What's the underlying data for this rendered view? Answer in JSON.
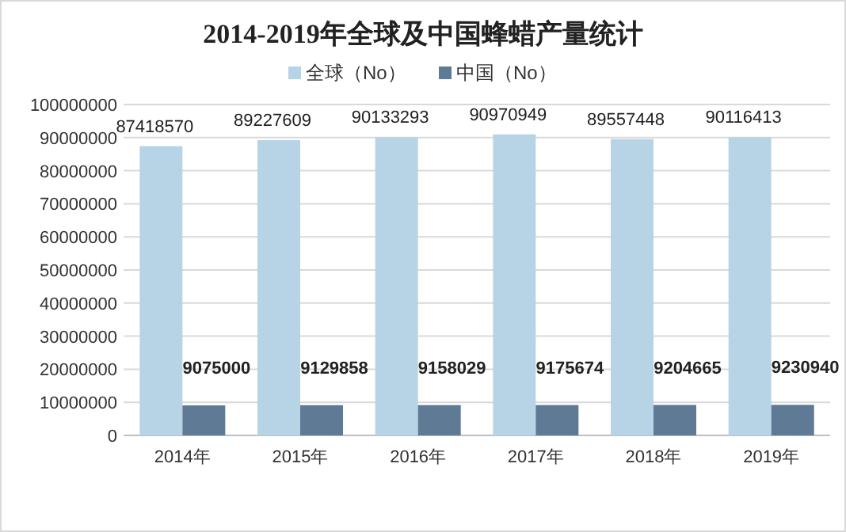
{
  "chart_data": {
    "type": "bar",
    "title": "2014-2019年全球及中国蜂蜡产量统计",
    "categories": [
      "2014年",
      "2015年",
      "2016年",
      "2017年",
      "2018年",
      "2019年"
    ],
    "series": [
      {
        "name": "全球（No）",
        "color": "#b7d4e6",
        "values": [
          87418570,
          89227609,
          90133293,
          90970949,
          89557448,
          90116413
        ]
      },
      {
        "name": "中国（No）",
        "color": "#5f7a94",
        "values": [
          9075000,
          9129858,
          9158029,
          9175674,
          9204665,
          9230940
        ]
      }
    ],
    "ylim": [
      0,
      100000000
    ],
    "yticks": [
      0,
      10000000,
      20000000,
      30000000,
      40000000,
      50000000,
      60000000,
      70000000,
      80000000,
      90000000,
      100000000
    ],
    "grid": "y",
    "legend": "top",
    "data_labels": true
  }
}
